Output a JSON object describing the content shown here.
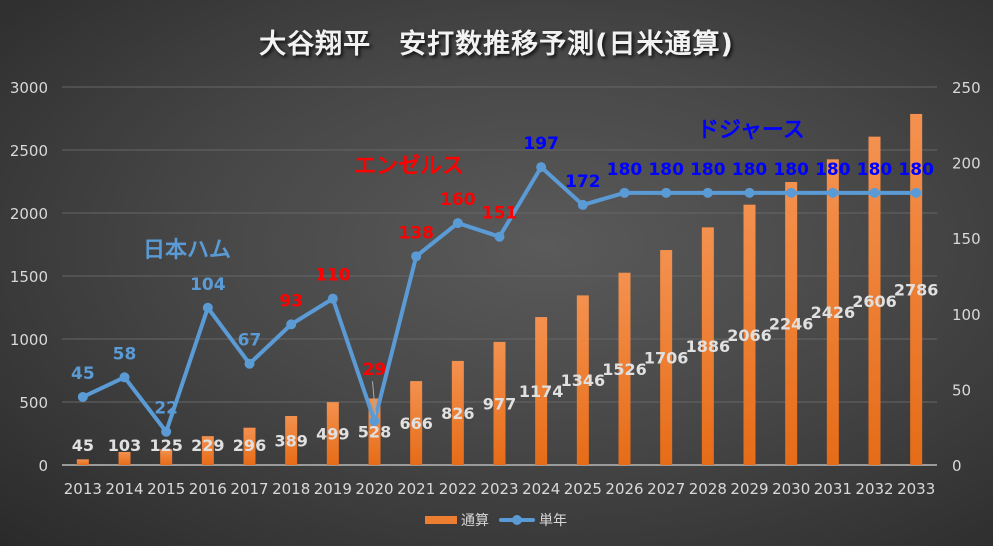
{
  "chart_data": {
    "type": "bar+line",
    "title": "大谷翔平　安打数推移予測(日米通算)",
    "categories": [
      "2013",
      "2014",
      "2015",
      "2016",
      "2017",
      "2018",
      "2019",
      "2020",
      "2021",
      "2022",
      "2023",
      "2024",
      "2025",
      "2026",
      "2027",
      "2028",
      "2029",
      "2030",
      "2031",
      "2032",
      "2033"
    ],
    "series": [
      {
        "name": "通算",
        "type": "bar",
        "axis": "left",
        "color": "#ed7d31",
        "values": [
          45,
          103,
          125,
          229,
          296,
          389,
          499,
          528,
          666,
          826,
          977,
          1174,
          1346,
          1526,
          1706,
          1886,
          2066,
          2246,
          2426,
          2606,
          2786
        ]
      },
      {
        "name": "単年",
        "type": "line",
        "axis": "right",
        "color": "#5b9bd5",
        "values": [
          45,
          58,
          22,
          104,
          67,
          93,
          110,
          29,
          138,
          160,
          151,
          197,
          172,
          180,
          180,
          180,
          180,
          180,
          180,
          180,
          180
        ]
      }
    ],
    "line_label_colors": [
      "#5b9bd5",
      "#5b9bd5",
      "#5b9bd5",
      "#5b9bd5",
      "#5b9bd5",
      "#ff0000",
      "#ff0000",
      "#ff0000",
      "#ff0000",
      "#ff0000",
      "#ff0000",
      "#0000ff",
      "#0000ff",
      "#0000ff",
      "#0000ff",
      "#0000ff",
      "#0000ff",
      "#0000ff",
      "#0000ff",
      "#0000ff",
      "#0000ff"
    ],
    "y_left": {
      "min": 0,
      "max": 3000,
      "ticks": [
        "0",
        "500",
        "1000",
        "1500",
        "2000",
        "2500",
        "3000"
      ]
    },
    "y_right": {
      "min": 0,
      "max": 250,
      "ticks": [
        "0",
        "50",
        "100",
        "150",
        "200",
        "250"
      ]
    },
    "grid": true,
    "legend": "bottom",
    "annotations": [
      {
        "text": "日本ハム",
        "color": "#5b9bd5"
      },
      {
        "text": "エンゼルス",
        "color": "#ff0000"
      },
      {
        "text": "ドジャース",
        "color": "#0000ff"
      }
    ]
  }
}
